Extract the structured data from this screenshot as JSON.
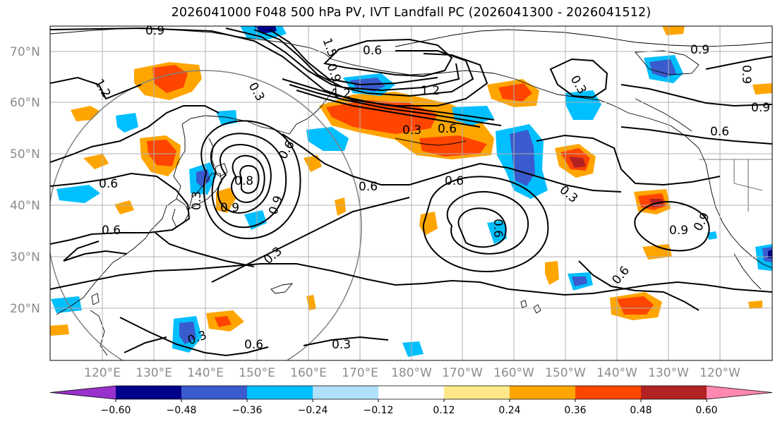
{
  "title": "2026041000 F048 500 hPa PV, IVT Landfall PC (2026041300 - 2026041512)",
  "lat_labels": [
    "70°N",
    "60°N",
    "50°N",
    "40°N",
    "30°N",
    "20°N"
  ],
  "lon_labels": [
    "120°E",
    "130°E",
    "140°E",
    "150°E",
    "160°E",
    "170°E",
    "180°W",
    "170°W",
    "160°W",
    "150°W",
    "140°W",
    "130°W",
    "120°W"
  ],
  "colorbar": {
    "ticks": [
      "−0.60",
      "−0.48",
      "−0.36",
      "−0.24",
      "−0.12",
      "0.12",
      "0.24",
      "0.36",
      "0.48",
      "0.60"
    ],
    "colors": [
      "#9932cc",
      "#00008b",
      "#3a5bcd",
      "#00bfff",
      "#b0e0fa",
      "#ffffff",
      "#fee88a",
      "#ffa500",
      "#ff4500",
      "#b22222",
      "#ff88b0"
    ]
  },
  "contour_labels": [
    "0.9",
    "1.5",
    "0.6",
    "0.9",
    "1.2",
    "0.3",
    "0.6",
    "0.3",
    "1.2",
    "0.6",
    "0.9",
    "0.9",
    "0.6",
    "0.9",
    "0.6",
    "0.9",
    "0.3",
    "1.2",
    "0.6",
    "0.8",
    "0.9",
    "0.6",
    "0.6",
    "0.9",
    "0.3",
    "0.9",
    "0.3",
    "0.6",
    "0.3",
    "0.6",
    "0.3",
    "0.3",
    "0.6"
  ],
  "colors": {
    "contour": "#000000",
    "grid": "#b0b0b0",
    "coast": "#000000",
    "landfall_circle": "#808080"
  }
}
